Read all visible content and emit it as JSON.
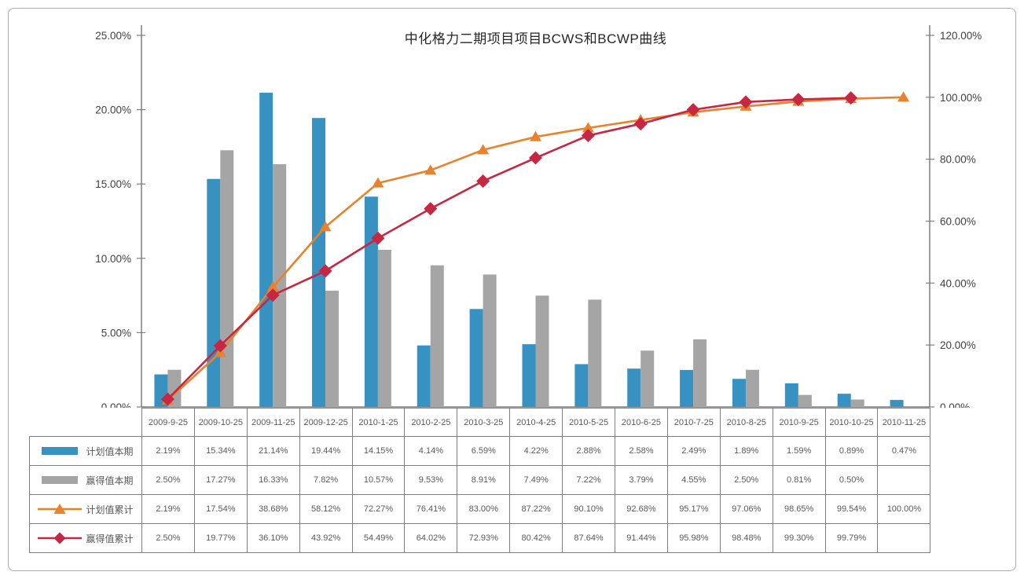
{
  "title": "中化格力二期项目项目BCWS和BCWP曲线",
  "chart_data": {
    "type": "combo-bar-line",
    "title": "中化格力二期项目项目BCWS和BCWP曲线",
    "categories": [
      "2009-9-25",
      "2009-10-25",
      "2009-11-25",
      "2009-12-25",
      "2010-1-25",
      "2010-2-25",
      "2010-3-25",
      "2010-4-25",
      "2010-5-25",
      "2010-6-25",
      "2010-7-25",
      "2010-8-25",
      "2010-9-25",
      "2010-10-25",
      "2010-11-25"
    ],
    "series": [
      {
        "name": "计划值本期",
        "type": "bar",
        "axis": "left",
        "color": "#3792C1",
        "marker": "none",
        "values": [
          2.19,
          15.34,
          21.14,
          19.44,
          14.15,
          4.14,
          6.59,
          4.22,
          2.88,
          2.58,
          2.49,
          1.89,
          1.59,
          0.89,
          0.47
        ]
      },
      {
        "name": "赢得值本期",
        "type": "bar",
        "axis": "left",
        "color": "#A5A5A5",
        "marker": "none",
        "values": [
          2.5,
          17.27,
          16.33,
          7.82,
          10.57,
          9.53,
          8.91,
          7.49,
          7.22,
          3.79,
          4.55,
          2.5,
          0.81,
          0.5,
          null
        ]
      },
      {
        "name": "计划值累计",
        "type": "line",
        "axis": "right",
        "color": "#E8822C",
        "marker": "triangle",
        "values": [
          2.19,
          17.54,
          38.68,
          58.12,
          72.27,
          76.41,
          83.0,
          87.22,
          90.1,
          92.68,
          95.17,
          97.06,
          98.65,
          99.54,
          100.0
        ]
      },
      {
        "name": "赢得值累计",
        "type": "line",
        "axis": "right",
        "color": "#C62742",
        "marker": "diamond",
        "values": [
          2.5,
          19.77,
          36.1,
          43.92,
          54.49,
          64.02,
          72.93,
          80.42,
          87.64,
          91.44,
          95.98,
          98.48,
          99.3,
          99.79,
          null
        ]
      }
    ],
    "left_axis": {
      "min": 0,
      "max": 25,
      "ticks": [
        "0.00%",
        "5.00%",
        "10.00%",
        "15.00%",
        "20.00%",
        "25.00%"
      ]
    },
    "right_axis": {
      "min": 0,
      "max": 120,
      "ticks": [
        "0.00%",
        "20.00%",
        "40.00%",
        "60.00%",
        "80.00%",
        "100.00%",
        "120.00%"
      ]
    },
    "grid": false,
    "legend_position": "table-first-column",
    "value_suffix": "%"
  },
  "colors": {
    "axis_line": "#7f7f7f",
    "table_border": "#7f7f7f",
    "axis_text": "#404040",
    "table_text": "#595959"
  }
}
